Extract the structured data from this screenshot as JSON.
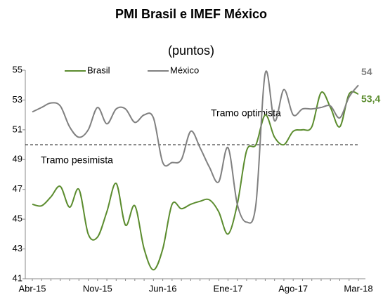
{
  "chart_data": {
    "type": "line",
    "title": "PMI Brasil e IMEF México",
    "subtitle": "(puntos)",
    "categories": [
      "Abr-15",
      null,
      null,
      null,
      null,
      null,
      null,
      "Nov-15",
      null,
      null,
      null,
      null,
      null,
      null,
      "Jun-16",
      null,
      null,
      null,
      null,
      null,
      null,
      "Ene-17",
      null,
      null,
      null,
      null,
      null,
      null,
      "Ago-17",
      null,
      null,
      null,
      null,
      null,
      null,
      "Mar-18"
    ],
    "series": [
      {
        "name": "Brasil",
        "color": "#5b8c2e",
        "values": [
          46.0,
          45.9,
          46.5,
          47.2,
          45.8,
          47.0,
          44.0,
          43.8,
          45.5,
          47.4,
          44.6,
          45.9,
          43.0,
          41.6,
          43.0,
          46.0,
          45.7,
          46.0,
          46.2,
          46.3,
          45.5,
          44.0,
          46.0,
          49.6,
          50.0,
          52.0,
          50.5,
          50.0,
          50.9,
          51.0,
          51.2,
          53.5,
          52.5,
          51.2,
          53.4,
          53.4
        ],
        "value_labels": [
          null,
          null,
          null,
          null,
          null,
          null,
          null,
          null,
          null,
          null,
          null,
          null,
          null,
          null,
          null,
          null,
          null,
          null,
          null,
          null,
          null,
          null,
          null,
          null,
          null,
          null,
          null,
          null,
          null,
          null,
          null,
          null,
          null,
          null,
          null,
          "53,4"
        ]
      },
      {
        "name": "México",
        "color": "#808080",
        "values": [
          52.2,
          52.5,
          52.8,
          52.6,
          51.2,
          50.5,
          51.0,
          52.5,
          51.4,
          52.4,
          52.4,
          51.5,
          52.0,
          51.8,
          48.8,
          48.8,
          49.0,
          50.9,
          49.8,
          48.5,
          47.5,
          49.8,
          46.0,
          44.8,
          46.0,
          54.8,
          51.6,
          53.7,
          52.0,
          52.4,
          52.4,
          52.5,
          52.6,
          51.8,
          53.2,
          54.0
        ],
        "value_labels": [
          null,
          null,
          null,
          null,
          null,
          null,
          null,
          null,
          null,
          null,
          null,
          null,
          null,
          null,
          null,
          null,
          null,
          null,
          null,
          null,
          null,
          null,
          null,
          null,
          null,
          null,
          null,
          null,
          null,
          null,
          null,
          null,
          null,
          null,
          null,
          "54"
        ]
      }
    ],
    "ylim": [
      41,
      55
    ],
    "yticks": [
      41,
      43,
      45,
      47,
      49,
      51,
      53,
      55
    ],
    "reference_line": 50,
    "annotations": [
      "Tramo optimista",
      "Tramo pesimista"
    ],
    "legend": "top-left"
  }
}
